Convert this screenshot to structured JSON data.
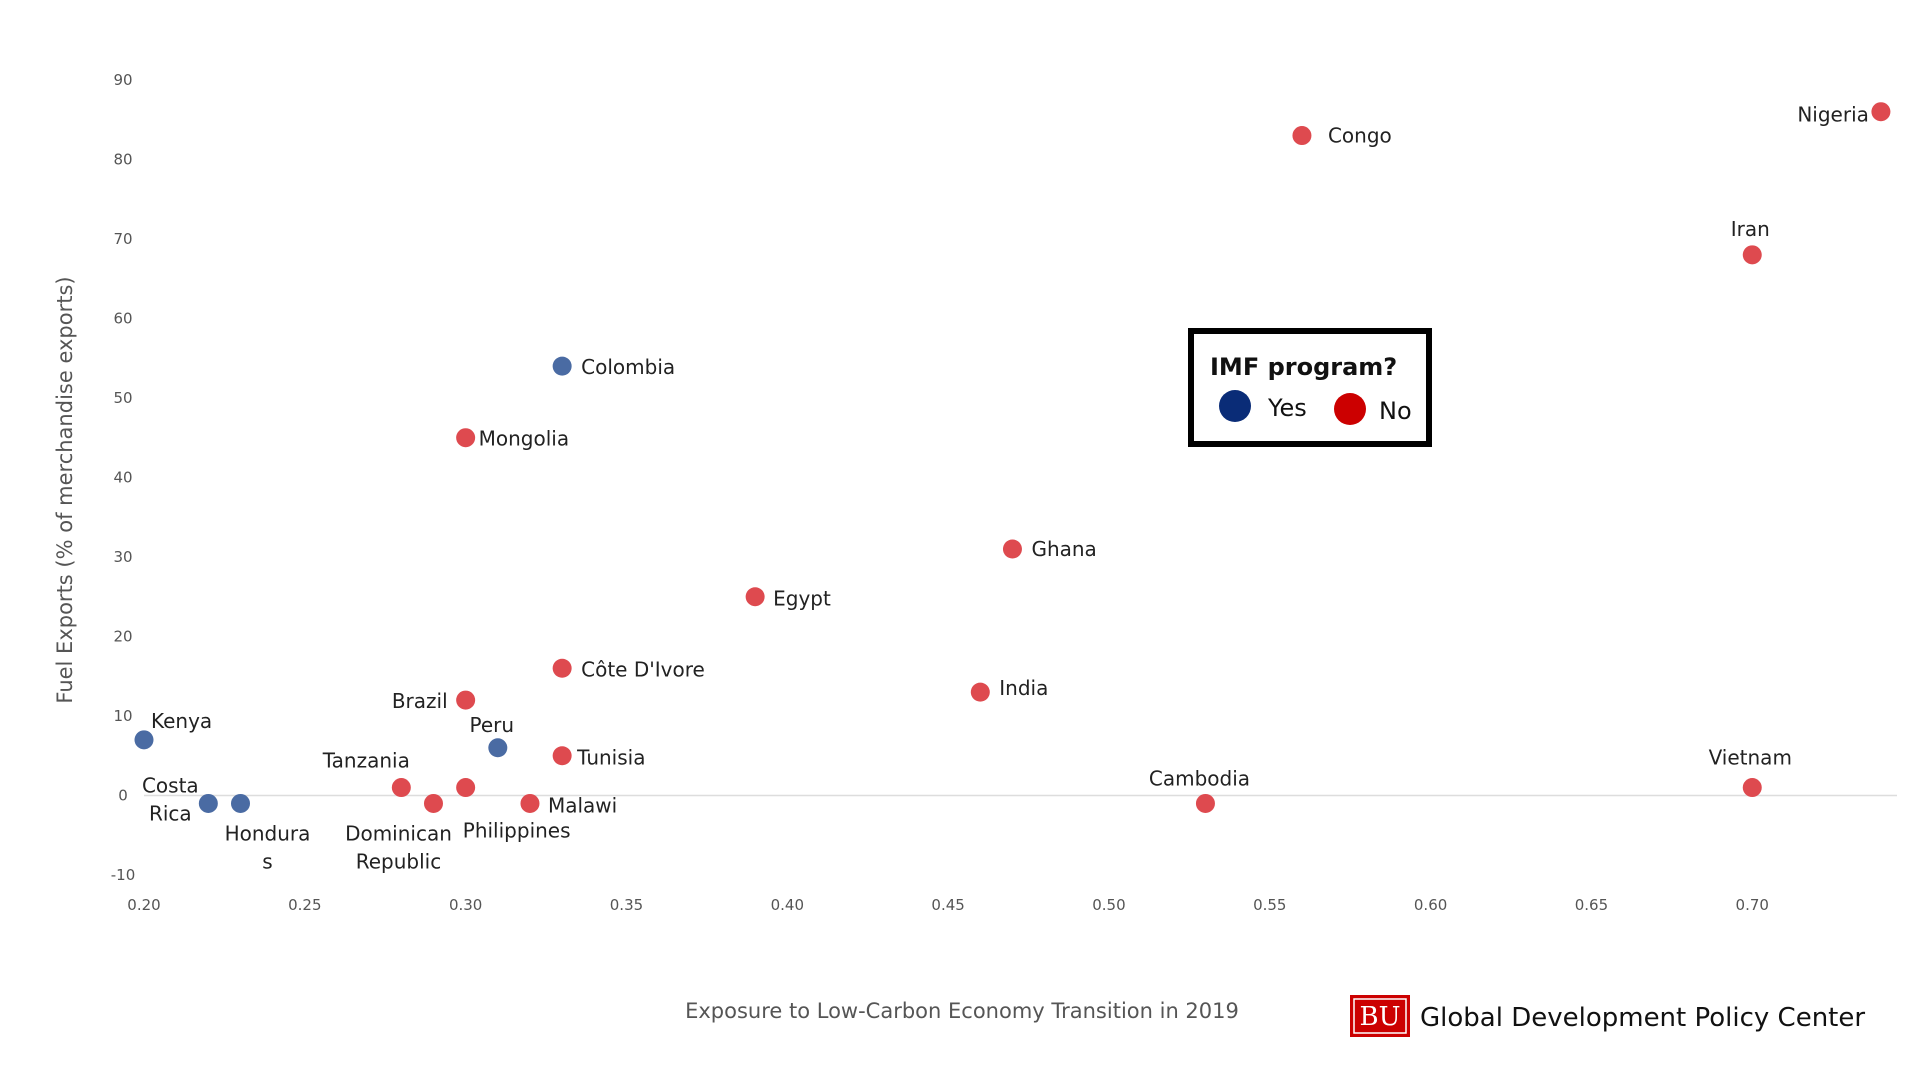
{
  "chart_data": {
    "type": "scatter",
    "xlabel": "Exposure to Low-Carbon Economy Transition in 2019",
    "ylabel": "Fuel Exports (% of merchandise exports)",
    "xlim": [
      0.2,
      0.745
    ],
    "ylim": [
      -10,
      92
    ],
    "xticks": [
      "0.20",
      "0.25",
      "0.30",
      "0.35",
      "0.40",
      "0.45",
      "0.50",
      "0.55",
      "0.60",
      "0.65",
      "0.70"
    ],
    "yticks": [
      "90",
      "80",
      "70",
      "60",
      "50",
      "40",
      "30",
      "20",
      "10",
      "0",
      "-10"
    ],
    "grid": false,
    "zero_line": true,
    "legend": {
      "title": "IMF program?",
      "placement": "center-right",
      "entries": [
        {
          "label": "Yes",
          "color": "#0a2c77"
        },
        {
          "label": "No",
          "color": "#cc0000"
        }
      ]
    },
    "point_colors": {
      "Yes": "#4a6ba3",
      "No": "#de4a4f"
    },
    "points": [
      {
        "label": "Nigeria",
        "x": 0.74,
        "y": 86,
        "imf": "No"
      },
      {
        "label": "Congo",
        "x": 0.56,
        "y": 83,
        "imf": "No"
      },
      {
        "label": "Iran",
        "x": 0.7,
        "y": 68,
        "imf": "No"
      },
      {
        "label": "Colombia",
        "x": 0.33,
        "y": 54,
        "imf": "Yes"
      },
      {
        "label": "Mongolia",
        "x": 0.3,
        "y": 45,
        "imf": "No"
      },
      {
        "label": "Ghana",
        "x": 0.47,
        "y": 31,
        "imf": "No"
      },
      {
        "label": "Egypt",
        "x": 0.39,
        "y": 25,
        "imf": "No"
      },
      {
        "label": "Côte D'Ivore",
        "x": 0.33,
        "y": 16,
        "imf": "No"
      },
      {
        "label": "India",
        "x": 0.46,
        "y": 13,
        "imf": "No"
      },
      {
        "label": "Brazil",
        "x": 0.3,
        "y": 12,
        "imf": "No"
      },
      {
        "label": "Kenya",
        "x": 0.2,
        "y": 7,
        "imf": "Yes"
      },
      {
        "label": "Peru",
        "x": 0.31,
        "y": 6,
        "imf": "Yes"
      },
      {
        "label": "Tunisia",
        "x": 0.33,
        "y": 5,
        "imf": "No"
      },
      {
        "label": "Tanzania",
        "x": 0.28,
        "y": 1,
        "imf": "No"
      },
      {
        "label": "Philippines",
        "x": 0.3,
        "y": 1,
        "imf": "No"
      },
      {
        "label": "Vietnam",
        "x": 0.7,
        "y": 1,
        "imf": "No"
      },
      {
        "label": "Costa Rica",
        "x": 0.22,
        "y": -1,
        "imf": "Yes"
      },
      {
        "label": "Honduras",
        "x": 0.23,
        "y": -1,
        "imf": "Yes"
      },
      {
        "label": "Dominican Republic",
        "x": 0.29,
        "y": -1,
        "imf": "No"
      },
      {
        "label": "Malawi",
        "x": 0.32,
        "y": -1,
        "imf": "No"
      },
      {
        "label": "Cambodia",
        "x": 0.53,
        "y": -1,
        "imf": "No"
      }
    ]
  },
  "branding": {
    "logo_text": "BU",
    "org_name": "Global Development Policy Center",
    "logo_color": "#cc0000"
  }
}
